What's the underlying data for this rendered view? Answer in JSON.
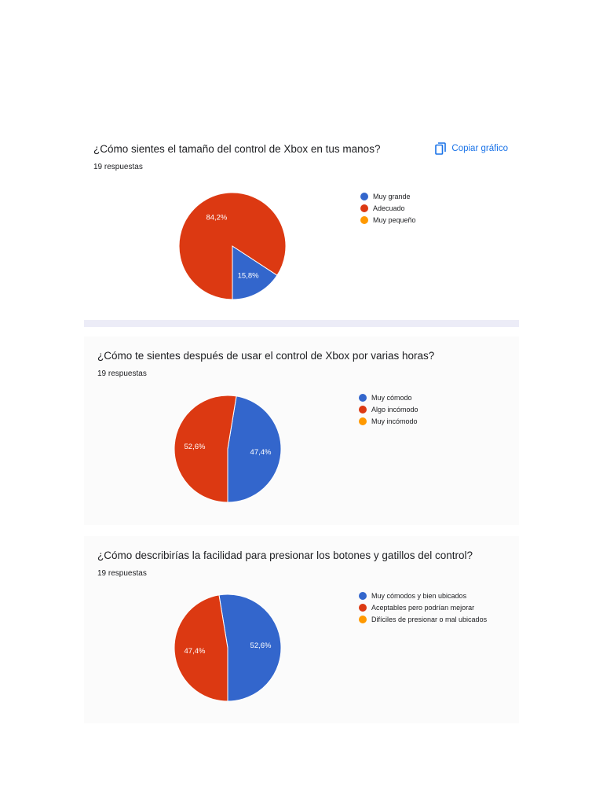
{
  "copy_label": "Copiar gráfico",
  "chart_data": [
    {
      "type": "pie",
      "title": "¿Cómo sientes el tamaño del control de Xbox en tus manos?",
      "subtitle": "19 respuestas",
      "categories": [
        "Muy grande",
        "Adecuado",
        "Muy pequeño"
      ],
      "values": [
        15.8,
        84.2,
        0
      ],
      "labels": [
        "15,8%",
        "84,2%",
        ""
      ],
      "colors": [
        "#3366cc",
        "#dc3912",
        "#ff9900"
      ],
      "legend": "right"
    },
    {
      "type": "pie",
      "title": "¿Cómo te sientes después de usar el control de Xbox por varias horas?",
      "subtitle": "19 respuestas",
      "categories": [
        "Muy cómodo",
        "Algo incómodo",
        "Muy incómodo"
      ],
      "values": [
        47.4,
        52.6,
        0
      ],
      "labels": [
        "47,4%",
        "52,6%",
        ""
      ],
      "colors": [
        "#3366cc",
        "#dc3912",
        "#ff9900"
      ],
      "legend": "right"
    },
    {
      "type": "pie",
      "title": "¿Cómo describirías la facilidad para presionar los botones y gatillos del control?",
      "subtitle": "19 respuestas",
      "categories": [
        "Muy cómodos y bien ubicados",
        "Aceptables pero podrían mejorar",
        "Difíciles de presionar o mal ubicados"
      ],
      "values": [
        52.6,
        47.4,
        0
      ],
      "labels": [
        "52,6%",
        "47,4%",
        ""
      ],
      "colors": [
        "#3366cc",
        "#dc3912",
        "#ff9900"
      ],
      "legend": "right"
    }
  ]
}
